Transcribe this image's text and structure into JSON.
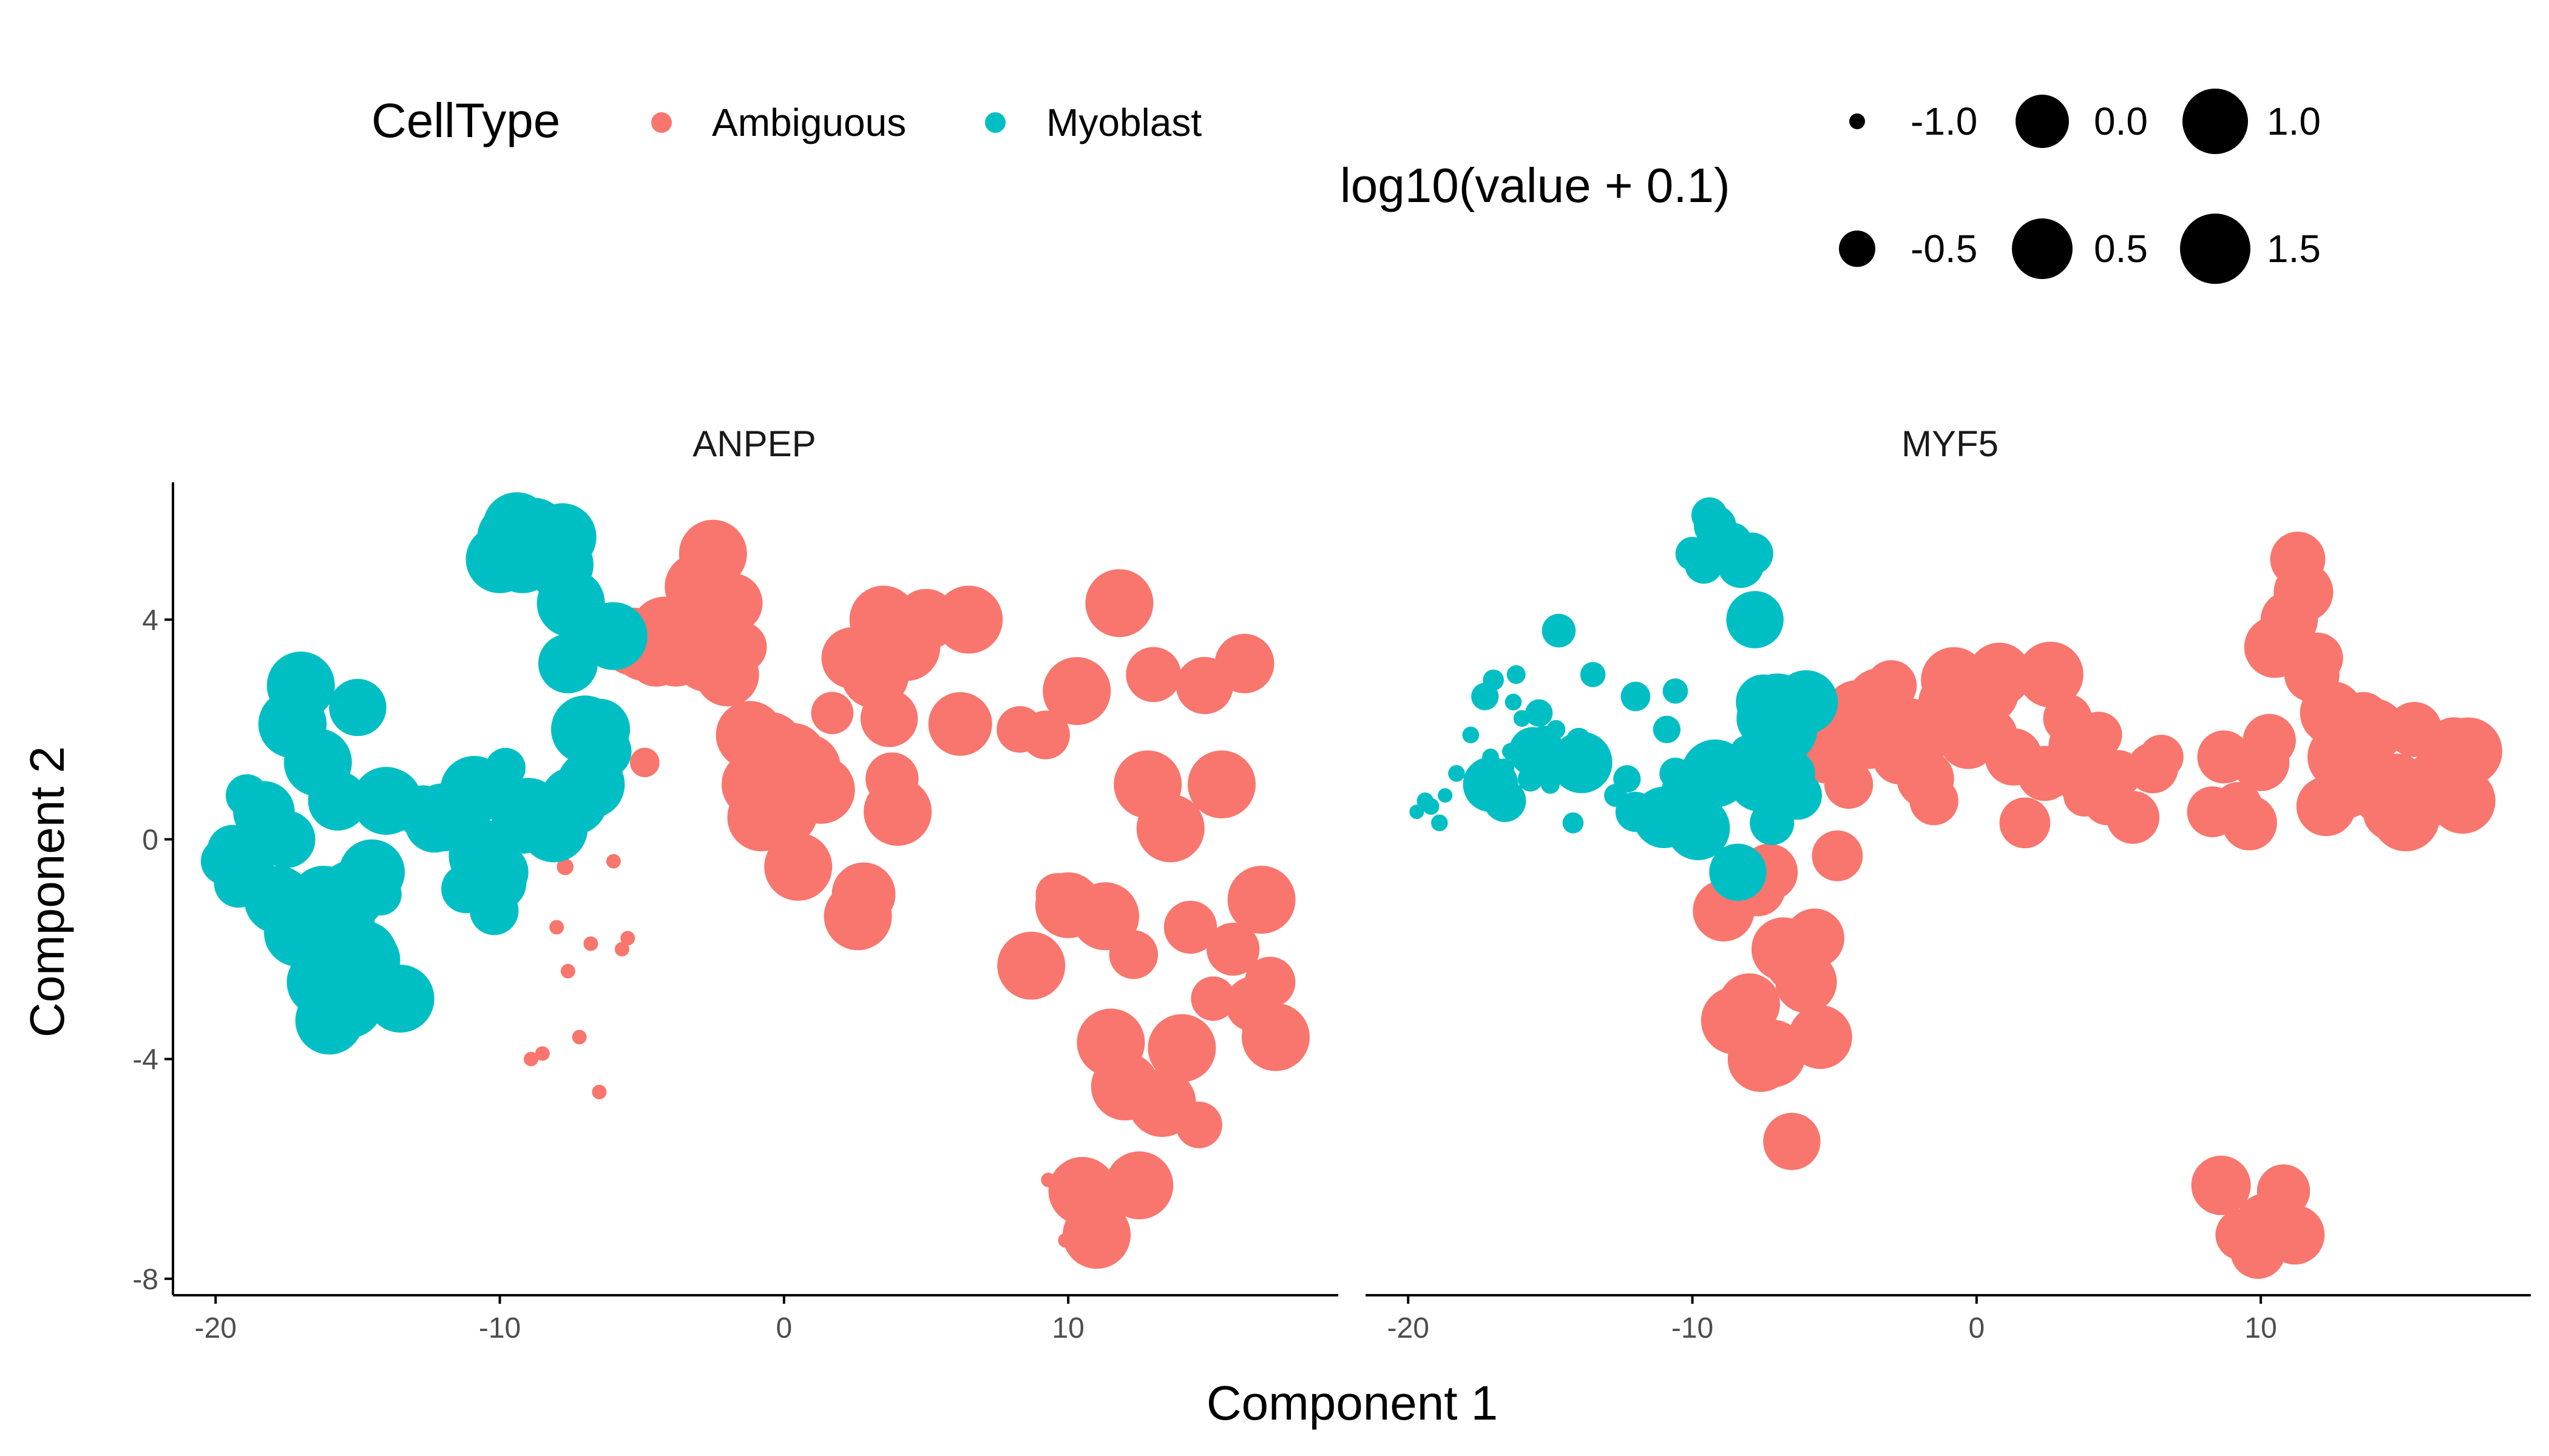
{
  "chart_data": {
    "type": "scatter",
    "facets": [
      "ANPEP",
      "MYF5"
    ],
    "xlabel": "Component 1",
    "ylabel": "Component 2",
    "xlim": [
      -21.5,
      19.5
    ],
    "ylim": [
      -8.3,
      6.5
    ],
    "x_ticks": [
      -20,
      -10,
      0,
      10
    ],
    "y_ticks": [
      -8,
      -4,
      0,
      4
    ],
    "x_tick_labels": [
      "-20",
      "-10",
      "0",
      "10"
    ],
    "y_tick_labels": [
      "-8",
      "-4",
      "0",
      "4"
    ],
    "grid": false,
    "legend": {
      "position": "top",
      "color_title": "CellType",
      "color_entries": [
        {
          "label": "Ambiguous",
          "color": "#F8766D"
        },
        {
          "label": "Myoblast",
          "color": "#00BFC4"
        }
      ],
      "size_title": "log10(value + 0.1)",
      "size_entries": [
        "-1.0",
        "-0.5",
        "0.0",
        "0.5",
        "1.0",
        "1.5"
      ],
      "size_values": [
        -1.0,
        -0.5,
        0.0,
        0.5,
        1.0,
        1.5
      ]
    },
    "series": [
      {
        "name": "Myoblast",
        "color": "#00BFC4",
        "points": [
          [
            -19.7,
            -0.4,
            0.5,
            -1.0
          ],
          [
            -19.4,
            -0.2,
            0.7,
            -0.9
          ],
          [
            -19.2,
            -0.8,
            0.6,
            -0.9
          ],
          [
            -18.9,
            0.8,
            0.3,
            -0.9
          ],
          [
            -18.7,
            -0.2,
            0.8,
            -1.0
          ],
          [
            -18.3,
            0.5,
            1.2,
            -0.9
          ],
          [
            -17.8,
            -1.1,
            1.9,
            -0.9
          ],
          [
            -17.5,
            0.0,
            1.0,
            -0.8
          ],
          [
            -17.3,
            2.1,
            2.6,
            -0.4
          ],
          [
            -17.0,
            2.8,
            2.9,
            -0.7
          ],
          [
            -17.1,
            -1.7,
            1.5,
            -0.9
          ],
          [
            -16.6,
            -1.2,
            1.3,
            -0.8
          ],
          [
            -16.4,
            1.4,
            1.6,
            -0.9
          ],
          [
            -16.3,
            -2.6,
            2.5,
            -0.9
          ],
          [
            -16.2,
            -1.1,
            3.0,
            -0.8
          ],
          [
            -16.0,
            -3.3,
            2.2,
            -0.9
          ],
          [
            -15.7,
            0.7,
            1.1,
            -0.5
          ],
          [
            -15.4,
            -2.8,
            2.3,
            -0.4
          ],
          [
            -15.2,
            -1.0,
            1.8,
            -0.3
          ],
          [
            -15.0,
            2.4,
            1.0,
            -0.8
          ],
          [
            -14.8,
            -2.1,
            2.0,
            -0.8
          ],
          [
            -14.7,
            -2.2,
            3.8,
            -0.1
          ],
          [
            -14.5,
            -0.6,
            1.4,
            -0.6
          ],
          [
            -14.2,
            -1.0,
            0.3,
            -0.7
          ],
          [
            -14.0,
            0.7,
            1.8,
            -0.5
          ],
          [
            -13.5,
            -2.9,
            3.0,
            -0.5
          ],
          [
            -12.7,
            0.5,
            0.8,
            -0.6
          ],
          [
            -12.3,
            0.3,
            1.1,
            -0.4
          ],
          [
            -12.0,
            0.4,
            2.6,
            -0.3
          ],
          [
            -11.2,
            -0.9,
            0.6,
            -0.5
          ],
          [
            -10.9,
            0.9,
            2.0,
            -0.4
          ],
          [
            -10.6,
            -0.2,
            1.2,
            -0.2
          ],
          [
            -10.6,
            -0.3,
            2.7,
            -0.5
          ],
          [
            -10.2,
            -1.3,
            0.6,
            -0.6
          ],
          [
            -10.0,
            5.1,
            5.2,
            -0.1
          ],
          [
            -9.6,
            5.5,
            5.0,
            0.1
          ],
          [
            -9.4,
            5.7,
            5.9,
            0.0
          ],
          [
            -9.2,
            5.1,
            5.7,
            0.3
          ],
          [
            -9.0,
            0.5,
            1.5,
            -0.3
          ],
          [
            -8.8,
            5.6,
            5.3,
            0.4
          ],
          [
            -8.6,
            5.2,
            5.4,
            0.2
          ],
          [
            -8.3,
            5.4,
            5.0,
            0.5
          ],
          [
            -8.1,
            0.2,
            1.6,
            -0.2
          ],
          [
            -7.9,
            5.0,
            5.2,
            0.3
          ],
          [
            -7.5,
            4.3,
            2.5,
            0.9
          ],
          [
            -7.4,
            0.7,
            2.2,
            1.1
          ],
          [
            -7.8,
            5.5,
            4.0,
            1.0
          ],
          [
            -7.6,
            3.2,
            1.1,
            1.4
          ],
          [
            -7.0,
            2.0,
            2.4,
            1.5
          ],
          [
            -6.8,
            1.0,
            2.0,
            1.6
          ],
          [
            -6.5,
            2.0,
            1.2,
            0.5
          ],
          [
            -6.0,
            3.7,
            2.5,
            1.3
          ],
          [
            -7.2,
            0.9,
            0.3,
            0.4
          ],
          [
            -6.3,
            1.6,
            0.8,
            0.6
          ],
          [
            -9.8,
            1.3,
            0.2,
            1.3
          ],
          [
            -9.2,
            0.3,
            1.2,
            1.5
          ],
          [
            -10.0,
            -0.6,
            1.0,
            0.8
          ],
          [
            -11.0,
            0.0,
            0.4,
            1.2
          ],
          [
            -12.0,
            0.3,
            0.5,
            0.2
          ],
          [
            -15.3,
            -3.0,
            1.5,
            0.8
          ],
          [
            -15.6,
            -1.5,
            1.6,
            0.6
          ],
          [
            -16.6,
            1.4,
            0.7,
            0.3
          ],
          [
            -17.1,
            2.1,
            1.0,
            0.9
          ],
          [
            -13.9,
            0.7,
            1.4,
            1.2
          ],
          [
            -8.4,
            -0.1,
            -0.6,
            1.0
          ],
          [
            -10.0,
            -0.8,
            0.8,
            1.3
          ]
        ]
      },
      {
        "name": "Ambiguous",
        "color": "#F8766D",
        "points": [
          [
            -5.3,
            3.6,
            1.5,
            0.8
          ],
          [
            -4.9,
            3.5,
            2.0,
            1.1
          ],
          [
            -4.5,
            3.3,
            1.0,
            0.6
          ],
          [
            -4.2,
            3.8,
            2.3,
            1.4
          ],
          [
            -3.8,
            3.4,
            1.8,
            1.0
          ],
          [
            -3.4,
            3.6,
            2.5,
            1.5
          ],
          [
            -3.0,
            4.6,
            2.8,
            0.7
          ],
          [
            -2.7,
            3.3,
            1.5,
            0.9
          ],
          [
            -2.5,
            5.2,
            2.2,
            0.3
          ],
          [
            -2.3,
            3.8,
            2.0,
            1.2
          ],
          [
            -2.0,
            3.0,
            1.3,
            0.8
          ],
          [
            -1.8,
            4.3,
            1.1,
            1.0
          ],
          [
            -1.5,
            3.5,
            0.7,
            0.6
          ],
          [
            -1.2,
            1.9,
            2.1,
            1.3
          ],
          [
            -1.0,
            1.0,
            2.5,
            1.1
          ],
          [
            -0.8,
            0.4,
            2.9,
            1.4
          ],
          [
            -0.5,
            1.7,
            2.3,
            0.9
          ],
          [
            -0.3,
            0.8,
            1.8,
            1.0
          ],
          [
            0.0,
            0.5,
            2.5,
            1.2
          ],
          [
            0.3,
            1.5,
            2.7,
            1.5
          ],
          [
            0.5,
            -0.5,
            1.9,
            0.8
          ],
          [
            0.8,
            1.3,
            3.0,
            1.3
          ],
          [
            1.3,
            0.9,
            1.5,
            1.0
          ],
          [
            1.7,
            2.3,
            0.3,
            0.7
          ],
          [
            2.4,
            3.3,
            1.2,
            0.9
          ],
          [
            2.6,
            -1.4,
            3.0,
            1.4
          ],
          [
            2.8,
            -1.0,
            1.3,
            0.5
          ],
          [
            3.2,
            3.0,
            2.2,
            0.6
          ],
          [
            3.5,
            4.0,
            1.7,
            0.9
          ],
          [
            3.7,
            2.2,
            1.0,
            0.4
          ],
          [
            3.8,
            1.1,
            0.8,
            0.3
          ],
          [
            4.0,
            0.5,
            1.6,
            0.6
          ],
          [
            4.3,
            3.5,
            1.9,
            0.5
          ],
          [
            4.6,
            3.8,
            0.7,
            0.6
          ],
          [
            5.0,
            4.0,
            1.2,
            0.5
          ],
          [
            5.5,
            4.0,
            0.4,
            0.8
          ],
          [
            6.2,
            2.1,
            1.3,
            0.7
          ],
          [
            6.5,
            4.0,
            1.5,
            0.4
          ],
          [
            8.3,
            2.0,
            0.5,
            0.7
          ],
          [
            8.7,
            -2.3,
            1.5,
            0.8
          ],
          [
            9.2,
            1.9,
            0.6,
            0.6
          ],
          [
            9.6,
            -1.0,
            0.3,
            0.9
          ],
          [
            10.0,
            -1.2,
            1.4,
            1.0
          ],
          [
            10.3,
            2.7,
            1.8,
            0.8
          ],
          [
            10.5,
            -6.4,
            3.5,
            1.2
          ],
          [
            11.0,
            -7.2,
            4.0,
            1.0
          ],
          [
            11.3,
            -1.4,
            5.1,
            0.9
          ],
          [
            11.5,
            -3.7,
            4.5,
            1.1
          ],
          [
            11.8,
            4.3,
            3.0,
            0.9
          ],
          [
            12.0,
            -4.5,
            3.3,
            0.7
          ],
          [
            12.3,
            -2.1,
            0.6,
            1.1
          ],
          [
            12.5,
            -6.3,
            2.3,
            1.3
          ],
          [
            12.8,
            1.0,
            1.5,
            1.4
          ],
          [
            13.0,
            3.0,
            0.9,
            1.0
          ],
          [
            13.3,
            -4.8,
            1.6,
            1.3
          ],
          [
            13.6,
            0.2,
            2.2,
            0.8
          ],
          [
            14.0,
            -3.8,
            2.0,
            1.2
          ],
          [
            14.3,
            -1.6,
            0.8,
            1.1
          ],
          [
            14.6,
            -5.2,
            0.5,
            1.0
          ],
          [
            14.8,
            2.8,
            1.0,
            1.2
          ],
          [
            15.1,
            -2.9,
            0.4,
            1.5
          ],
          [
            15.4,
            1.0,
            2.0,
            0.9
          ],
          [
            15.8,
            -2.0,
            0.8,
            1.4
          ],
          [
            16.2,
            3.2,
            1.1,
            1.1
          ],
          [
            16.5,
            -3.0,
            0.9,
            1.2
          ],
          [
            16.8,
            -1.1,
            1.7,
            1.0
          ],
          [
            17.1,
            -2.6,
            0.7,
            1.4
          ],
          [
            17.3,
            -3.6,
            1.6,
            1.5
          ],
          [
            -8.0,
            -1.6,
            -3.0,
            1.2
          ],
          [
            -7.6,
            -2.4,
            -4.0,
            1.4
          ],
          [
            -7.2,
            -3.6,
            -3.9,
            1.5
          ],
          [
            -6.8,
            -1.9,
            -2.0,
            1.3
          ],
          [
            -6.5,
            -4.6,
            -5.5,
            1.0
          ],
          [
            -6.0,
            -0.4,
            -2.6,
            1.2
          ],
          [
            -5.7,
            -2.0,
            -1.8,
            1.1
          ],
          [
            -8.5,
            -3.9,
            -3.3,
            1.5
          ],
          [
            -7.3,
            3.4,
            -0.6,
            1.0
          ],
          [
            -5.5,
            -1.8,
            -3.6,
            1.3
          ],
          [
            -4.9,
            1.4,
            -0.3,
            0.7
          ],
          [
            -8.9,
            -4.0,
            -1.3,
            1.2
          ],
          [
            -7.7,
            -0.5,
            -0.9,
            0.9
          ],
          [
            -6.3,
            1.0,
            -2.2,
            1.4
          ],
          [
            8.6,
            -2.3,
            -6.3,
            1.1
          ],
          [
            9.9,
            -7.3,
            -7.5,
            0.9
          ],
          [
            10.2,
            -6.8,
            -7.0,
            1.2
          ],
          [
            10.8,
            -7.5,
            -6.4,
            0.8
          ],
          [
            9.3,
            -6.2,
            -7.2,
            0.7
          ],
          [
            11.2,
            -7.0,
            -7.2,
            1.1
          ]
        ]
      }
    ]
  }
}
